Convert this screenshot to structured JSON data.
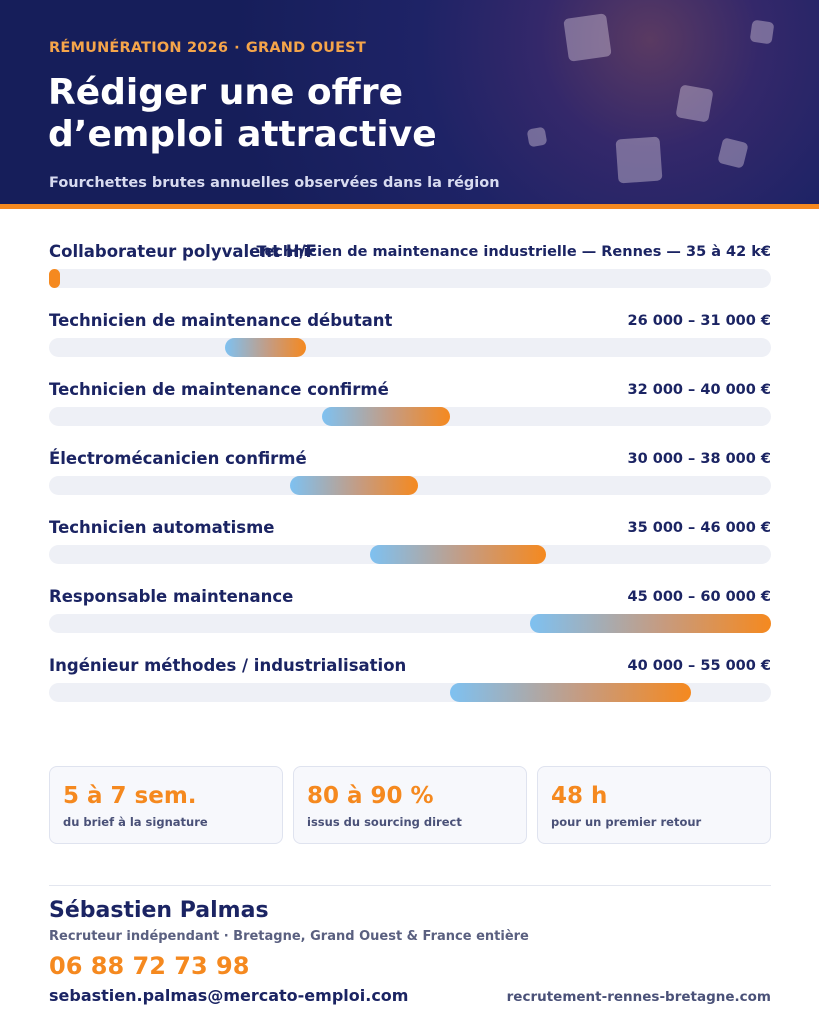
{
  "header": {
    "eyebrow_left": "RÉMUNÉRATION 2026",
    "eyebrow_sep": "·",
    "eyebrow_right": "GRAND OUEST",
    "title": "Rédiger une offre d’emploi attractive",
    "subtitle": "Fourchettes brutes annuelles observées dans la région"
  },
  "salaries": [
    {
      "label": "Collaborateur polyvalent H/F",
      "overlay": "Technicien de maintenance industrielle — Rennes — 35 à 42 k€",
      "range": "",
      "fill_start": 0.0,
      "fill_end": 0.015
    },
    {
      "label": "Technicien de maintenance débutant",
      "range": "26 000 – 31 000 €",
      "min": 26000,
      "max": 31000
    },
    {
      "label": "Technicien de maintenance confirmé",
      "range": "32 000 – 40 000 €",
      "min": 32000,
      "max": 40000
    },
    {
      "label": "Électromécanicien confirmé",
      "range": "30 000 – 38 000 €",
      "min": 30000,
      "max": 38000
    },
    {
      "label": "Technicien automatisme",
      "range": "35 000 – 46 000 €",
      "min": 35000,
      "max": 46000
    },
    {
      "label": "Responsable maintenance",
      "range": "45 000 – 60 000 €",
      "min": 45000,
      "max": 60000
    },
    {
      "label": "Ingénieur méthodes / industrialisation",
      "range": "40 000 – 55 000 €",
      "min": 40000,
      "max": 55000
    }
  ],
  "stats": [
    {
      "value": "5 à 7 sem.",
      "caption": "du brief à la signature"
    },
    {
      "value": "80 à 90 %",
      "caption": "issus du sourcing direct"
    },
    {
      "value": "48 h",
      "caption": "pour un premier retour"
    }
  ],
  "contact": {
    "name": "Sébastien Palmas",
    "role": "Recruteur indépendant · Bretagne, Grand Ouest & France entière",
    "phone": "06 88 72 73 98",
    "email": "sebastien.palmas@mercato-emploi.com",
    "website": "recrutement-rennes-bretagne.com"
  },
  "colors": {
    "navy": "#1b2463",
    "accent": "#f5891f",
    "bar_start": "#7ec1f1"
  }
}
